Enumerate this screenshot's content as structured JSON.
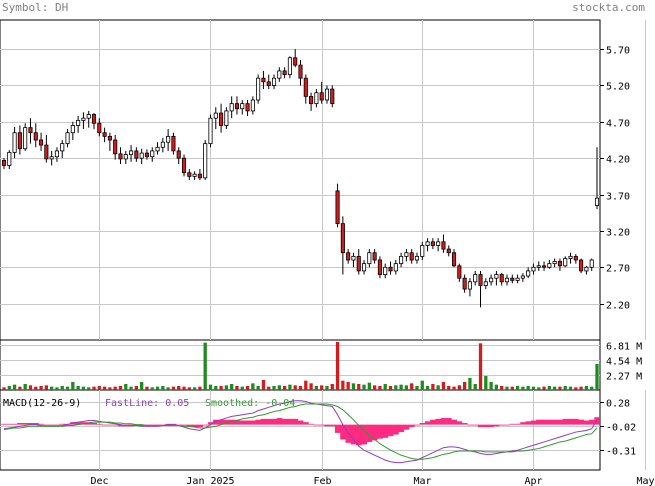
{
  "header": {
    "symbol_text": "Symbol: DH",
    "site": "stockta.com"
  },
  "colors": {
    "up": "#ffffff",
    "down": "#d41c1c",
    "vol_up": "#1c8c1c",
    "vol_down": "#d41c1c",
    "macd_fast": "#8c3fbf",
    "macd_smooth": "#2f9b2f",
    "macd_hist": "#ff2b80",
    "grid": "#c8c8c8"
  },
  "chart_data": [
    {
      "type": "candlestick",
      "name": "price",
      "y_ticks": [
        2.2,
        2.7,
        3.2,
        3.7,
        4.2,
        4.7,
        5.2,
        5.7
      ],
      "ylim": [
        1.7,
        6.1
      ],
      "x_ticks": [
        {
          "label": "Dec",
          "i": 18
        },
        {
          "label": "Jan 2025",
          "i": 39
        },
        {
          "label": "Feb",
          "i": 60
        },
        {
          "label": "Mar",
          "i": 79
        },
        {
          "label": "Apr",
          "i": 100
        },
        {
          "label": "May",
          "i": 121
        }
      ],
      "candles": [
        [
          4.17,
          4.2,
          4.05,
          4.1
        ],
        [
          4.1,
          4.31,
          4.05,
          4.28
        ],
        [
          4.28,
          4.63,
          4.2,
          4.55
        ],
        [
          4.55,
          4.65,
          4.25,
          4.33
        ],
        [
          4.33,
          4.68,
          4.3,
          4.62
        ],
        [
          4.62,
          4.75,
          4.4,
          4.55
        ],
        [
          4.55,
          4.68,
          4.35,
          4.45
        ],
        [
          4.45,
          4.55,
          4.3,
          4.38
        ],
        [
          4.38,
          4.52,
          4.14,
          4.19
        ],
        [
          4.19,
          4.3,
          4.1,
          4.22
        ],
        [
          4.22,
          4.35,
          4.15,
          4.3
        ],
        [
          4.3,
          4.45,
          4.2,
          4.4
        ],
        [
          4.4,
          4.6,
          4.35,
          4.55
        ],
        [
          4.55,
          4.7,
          4.45,
          4.65
        ],
        [
          4.65,
          4.78,
          4.55,
          4.72
        ],
        [
          4.72,
          4.83,
          4.6,
          4.75
        ],
        [
          4.75,
          4.85,
          4.62,
          4.8
        ],
        [
          4.8,
          4.82,
          4.6,
          4.68
        ],
        [
          4.68,
          4.75,
          4.5,
          4.55
        ],
        [
          4.55,
          4.62,
          4.42,
          4.5
        ],
        [
          4.5,
          4.55,
          4.3,
          4.45
        ],
        [
          4.45,
          4.52,
          4.18,
          4.26
        ],
        [
          4.26,
          4.35,
          4.12,
          4.19
        ],
        [
          4.19,
          4.3,
          4.12,
          4.25
        ],
        [
          4.25,
          4.38,
          4.15,
          4.3
        ],
        [
          4.3,
          4.35,
          4.15,
          4.2
        ],
        [
          4.2,
          4.33,
          4.12,
          4.27
        ],
        [
          4.27,
          4.32,
          4.18,
          4.22
        ],
        [
          4.22,
          4.35,
          4.15,
          4.3
        ],
        [
          4.3,
          4.42,
          4.25,
          4.35
        ],
        [
          4.35,
          4.48,
          4.28,
          4.42
        ],
        [
          4.42,
          4.6,
          4.3,
          4.5
        ],
        [
          4.5,
          4.55,
          4.25,
          4.3
        ],
        [
          4.3,
          4.35,
          4.12,
          4.2
        ],
        [
          4.2,
          4.25,
          3.95,
          4.0
        ],
        [
          4.0,
          4.05,
          3.9,
          3.95
        ],
        [
          3.95,
          4.02,
          3.9,
          3.98
        ],
        [
          3.98,
          4.05,
          3.9,
          3.93
        ],
        [
          3.93,
          4.45,
          3.9,
          4.4
        ],
        [
          4.4,
          4.8,
          4.35,
          4.75
        ],
        [
          4.75,
          4.9,
          4.6,
          4.82
        ],
        [
          4.82,
          4.95,
          4.55,
          4.65
        ],
        [
          4.65,
          4.9,
          4.6,
          4.85
        ],
        [
          4.85,
          5.05,
          4.75,
          4.95
        ],
        [
          4.95,
          5.05,
          4.8,
          4.88
        ],
        [
          4.88,
          5.0,
          4.8,
          4.95
        ],
        [
          4.95,
          5.0,
          4.78,
          4.85
        ],
        [
          4.85,
          5.05,
          4.8,
          5.0
        ],
        [
          5.0,
          5.35,
          4.95,
          5.3
        ],
        [
          5.3,
          5.4,
          5.15,
          5.25
        ],
        [
          5.25,
          5.35,
          5.15,
          5.2
        ],
        [
          5.2,
          5.35,
          5.15,
          5.3
        ],
        [
          5.3,
          5.45,
          5.25,
          5.4
        ],
        [
          5.4,
          5.45,
          5.3,
          5.35
        ],
        [
          5.35,
          5.6,
          5.3,
          5.58
        ],
        [
          5.58,
          5.7,
          5.45,
          5.48
        ],
        [
          5.48,
          5.55,
          5.2,
          5.3
        ],
        [
          5.3,
          5.35,
          4.95,
          5.05
        ],
        [
          5.05,
          5.1,
          4.85,
          4.95
        ],
        [
          4.95,
          5.15,
          4.9,
          5.1
        ],
        [
          5.1,
          5.25,
          4.95,
          5.0
        ],
        [
          5.0,
          5.2,
          4.95,
          5.15
        ],
        [
          5.15,
          5.2,
          4.9,
          4.95
        ],
        [
          3.75,
          3.85,
          3.25,
          3.3
        ],
        [
          3.3,
          3.4,
          2.6,
          2.9
        ],
        [
          2.9,
          2.95,
          2.75,
          2.8
        ],
        [
          2.8,
          2.9,
          2.7,
          2.85
        ],
        [
          2.85,
          2.95,
          2.6,
          2.65
        ],
        [
          2.65,
          2.8,
          2.6,
          2.75
        ],
        [
          2.75,
          2.95,
          2.7,
          2.9
        ],
        [
          2.9,
          2.95,
          2.75,
          2.8
        ],
        [
          2.8,
          2.85,
          2.55,
          2.6
        ],
        [
          2.6,
          2.75,
          2.55,
          2.7
        ],
        [
          2.7,
          2.78,
          2.6,
          2.65
        ],
        [
          2.65,
          2.8,
          2.6,
          2.75
        ],
        [
          2.75,
          2.9,
          2.7,
          2.85
        ],
        [
          2.85,
          2.95,
          2.78,
          2.9
        ],
        [
          2.9,
          2.95,
          2.75,
          2.8
        ],
        [
          2.8,
          2.9,
          2.75,
          2.85
        ],
        [
          2.85,
          3.05,
          2.8,
          3.0
        ],
        [
          3.0,
          3.1,
          2.92,
          3.05
        ],
        [
          3.05,
          3.1,
          2.95,
          3.0
        ],
        [
          3.0,
          3.1,
          2.92,
          3.05
        ],
        [
          3.05,
          3.15,
          2.9,
          2.95
        ],
        [
          2.95,
          3.0,
          2.85,
          2.9
        ],
        [
          2.9,
          2.95,
          2.7,
          2.72
        ],
        [
          2.72,
          2.75,
          2.5,
          2.55
        ],
        [
          2.55,
          2.6,
          2.35,
          2.4
        ],
        [
          2.4,
          2.55,
          2.3,
          2.5
        ],
        [
          2.5,
          2.65,
          2.45,
          2.6
        ],
        [
          2.6,
          2.65,
          2.15,
          2.45
        ],
        [
          2.45,
          2.55,
          2.4,
          2.5
        ],
        [
          2.5,
          2.6,
          2.45,
          2.55
        ],
        [
          2.55,
          2.65,
          2.45,
          2.6
        ],
        [
          2.6,
          2.62,
          2.45,
          2.5
        ],
        [
          2.5,
          2.6,
          2.45,
          2.55
        ],
        [
          2.55,
          2.6,
          2.48,
          2.52
        ],
        [
          2.52,
          2.6,
          2.48,
          2.55
        ],
        [
          2.55,
          2.62,
          2.5,
          2.58
        ],
        [
          2.58,
          2.7,
          2.55,
          2.65
        ],
        [
          2.65,
          2.75,
          2.6,
          2.7
        ],
        [
          2.7,
          2.78,
          2.65,
          2.72
        ],
        [
          2.72,
          2.78,
          2.65,
          2.7
        ],
        [
          2.7,
          2.8,
          2.68,
          2.75
        ],
        [
          2.75,
          2.82,
          2.7,
          2.78
        ],
        [
          2.78,
          2.82,
          2.65,
          2.72
        ],
        [
          2.72,
          2.85,
          2.7,
          2.82
        ],
        [
          2.82,
          2.9,
          2.75,
          2.85
        ],
        [
          2.85,
          2.88,
          2.75,
          2.8
        ],
        [
          2.8,
          2.82,
          2.62,
          2.65
        ],
        [
          2.65,
          2.72,
          2.6,
          2.7
        ],
        [
          2.7,
          2.82,
          2.65,
          2.8
        ],
        [
          3.55,
          4.35,
          3.5,
          3.65
        ]
      ]
    },
    {
      "type": "bar",
      "name": "volume",
      "y_ticks": [
        {
          "label": "2.27 M",
          "v": 2.27
        },
        {
          "label": "4.54 M",
          "v": 4.54
        },
        {
          "label": "6.81 M",
          "v": 6.81
        }
      ],
      "ylim": [
        0,
        7.5
      ],
      "values": [
        0.4,
        0.6,
        0.8,
        0.5,
        0.9,
        0.7,
        0.5,
        0.6,
        0.7,
        0.5,
        0.4,
        0.6,
        0.5,
        1.2,
        0.6,
        0.5,
        0.4,
        0.5,
        0.6,
        0.5,
        0.4,
        0.5,
        0.6,
        0.9,
        0.5,
        0.6,
        1.2,
        0.5,
        0.4,
        0.5,
        0.6,
        0.4,
        0.5,
        0.6,
        0.5,
        0.4,
        0.4,
        0.5,
        7.1,
        0.8,
        0.6,
        0.6,
        0.7,
        0.9,
        0.6,
        0.5,
        0.6,
        1.0,
        0.6,
        1.5,
        0.5,
        0.6,
        0.7,
        0.6,
        0.8,
        0.7,
        0.6,
        1.4,
        1.0,
        0.6,
        0.7,
        0.6,
        0.9,
        7.2,
        1.4,
        1.2,
        1.0,
        0.9,
        0.8,
        1.1,
        0.7,
        0.6,
        0.9,
        0.6,
        0.7,
        0.8,
        0.7,
        1.0,
        0.6,
        1.4,
        0.6,
        0.9,
        0.7,
        1.2,
        0.6,
        0.5,
        0.7,
        1.2,
        1.8,
        0.9,
        7.0,
        2.1,
        1.2,
        0.8,
        0.6,
        0.5,
        0.5,
        0.6,
        0.5,
        0.6,
        0.5,
        0.4,
        0.5,
        0.6,
        0.5,
        0.5,
        0.6,
        0.5,
        0.4,
        0.5,
        0.6,
        0.5,
        3.9
      ]
    },
    {
      "type": "line",
      "name": "macd",
      "title": "MACD(12-26-9)",
      "fast_label": "FastLine: 0.05",
      "smooth_label": "Smoothed: -0.04",
      "y_ticks": [
        {
          "label": "0.28",
          "v": 0.28
        },
        {
          "label": "-0.02",
          "v": -0.02
        },
        {
          "label": "-0.31",
          "v": -0.31
        }
      ],
      "ylim": [
        -0.55,
        0.42
      ],
      "series": [
        {
          "name": "FastLine",
          "values": [
            -0.05,
            -0.04,
            -0.03,
            -0.02,
            -0.01,
            0.0,
            0.0,
            -0.01,
            -0.02,
            -0.02,
            -0.02,
            -0.01,
            0.0,
            0.02,
            0.03,
            0.04,
            0.05,
            0.05,
            0.04,
            0.03,
            0.02,
            0.01,
            0.0,
            -0.01,
            -0.01,
            -0.01,
            -0.02,
            -0.02,
            -0.02,
            -0.02,
            -0.01,
            0.0,
            0.0,
            -0.01,
            -0.03,
            -0.05,
            -0.06,
            -0.07,
            -0.04,
            0.0,
            0.04,
            0.06,
            0.08,
            0.1,
            0.11,
            0.12,
            0.13,
            0.14,
            0.17,
            0.19,
            0.21,
            0.23,
            0.25,
            0.26,
            0.28,
            0.29,
            0.29,
            0.28,
            0.26,
            0.25,
            0.24,
            0.23,
            0.22,
            0.12,
            0.0,
            -0.1,
            -0.18,
            -0.26,
            -0.31,
            -0.34,
            -0.37,
            -0.4,
            -0.43,
            -0.45,
            -0.46,
            -0.46,
            -0.45,
            -0.44,
            -0.43,
            -0.4,
            -0.37,
            -0.34,
            -0.31,
            -0.28,
            -0.27,
            -0.27,
            -0.28,
            -0.3,
            -0.32,
            -0.33,
            -0.35,
            -0.36,
            -0.36,
            -0.35,
            -0.34,
            -0.33,
            -0.32,
            -0.31,
            -0.29,
            -0.27,
            -0.25,
            -0.23,
            -0.21,
            -0.19,
            -0.17,
            -0.15,
            -0.13,
            -0.11,
            -0.09,
            -0.08,
            -0.07,
            -0.05,
            0.05
          ]
        },
        {
          "name": "Smoothed",
          "values": [
            -0.06,
            -0.05,
            -0.04,
            -0.04,
            -0.03,
            -0.02,
            -0.02,
            -0.02,
            -0.02,
            -0.02,
            -0.02,
            -0.02,
            -0.01,
            -0.01,
            0.0,
            0.01,
            0.02,
            0.03,
            0.03,
            0.03,
            0.03,
            0.02,
            0.02,
            0.01,
            0.01,
            0.0,
            0.0,
            -0.01,
            -0.01,
            -0.01,
            -0.01,
            -0.01,
            -0.01,
            -0.01,
            -0.02,
            -0.02,
            -0.03,
            -0.04,
            -0.04,
            -0.03,
            -0.02,
            0.0,
            0.02,
            0.04,
            0.05,
            0.07,
            0.08,
            0.09,
            0.11,
            0.12,
            0.14,
            0.16,
            0.17,
            0.19,
            0.21,
            0.22,
            0.24,
            0.25,
            0.25,
            0.25,
            0.25,
            0.25,
            0.24,
            0.22,
            0.18,
            0.12,
            0.06,
            -0.01,
            -0.07,
            -0.13,
            -0.18,
            -0.23,
            -0.27,
            -0.31,
            -0.34,
            -0.37,
            -0.39,
            -0.41,
            -0.42,
            -0.42,
            -0.41,
            -0.4,
            -0.38,
            -0.36,
            -0.35,
            -0.33,
            -0.32,
            -0.32,
            -0.32,
            -0.32,
            -0.32,
            -0.33,
            -0.33,
            -0.33,
            -0.33,
            -0.33,
            -0.33,
            -0.32,
            -0.32,
            -0.31,
            -0.3,
            -0.29,
            -0.27,
            -0.25,
            -0.23,
            -0.21,
            -0.2,
            -0.18,
            -0.16,
            -0.14,
            -0.12,
            -0.11,
            -0.04
          ]
        }
      ],
      "histogram": [
        0.01,
        0.01,
        0.01,
        0.02,
        0.02,
        0.02,
        0.02,
        0.01,
        0.0,
        0.0,
        0.0,
        0.01,
        0.01,
        0.03,
        0.03,
        0.03,
        0.03,
        0.02,
        0.01,
        0.0,
        -0.01,
        -0.01,
        -0.02,
        -0.02,
        -0.02,
        -0.01,
        -0.02,
        -0.01,
        -0.01,
        -0.01,
        0.0,
        0.01,
        0.01,
        0.0,
        -0.01,
        -0.03,
        -0.03,
        -0.03,
        0.0,
        0.03,
        0.06,
        0.06,
        0.06,
        0.06,
        0.06,
        0.05,
        0.05,
        0.05,
        0.06,
        0.07,
        0.07,
        0.07,
        0.08,
        0.07,
        0.07,
        0.07,
        0.05,
        0.03,
        0.01,
        0.0,
        -0.01,
        -0.02,
        -0.02,
        -0.1,
        -0.18,
        -0.22,
        -0.24,
        -0.25,
        -0.24,
        -0.21,
        -0.19,
        -0.17,
        -0.16,
        -0.14,
        -0.12,
        -0.09,
        -0.06,
        -0.03,
        -0.01,
        0.02,
        0.04,
        0.06,
        0.07,
        0.08,
        0.08,
        0.06,
        0.04,
        0.02,
        0.0,
        -0.01,
        -0.03,
        -0.03,
        -0.03,
        -0.02,
        -0.01,
        0.0,
        0.01,
        0.01,
        0.03,
        0.04,
        0.05,
        0.06,
        0.06,
        0.06,
        0.06,
        0.06,
        0.07,
        0.07,
        0.07,
        0.06,
        0.05,
        0.06,
        0.09
      ]
    }
  ]
}
